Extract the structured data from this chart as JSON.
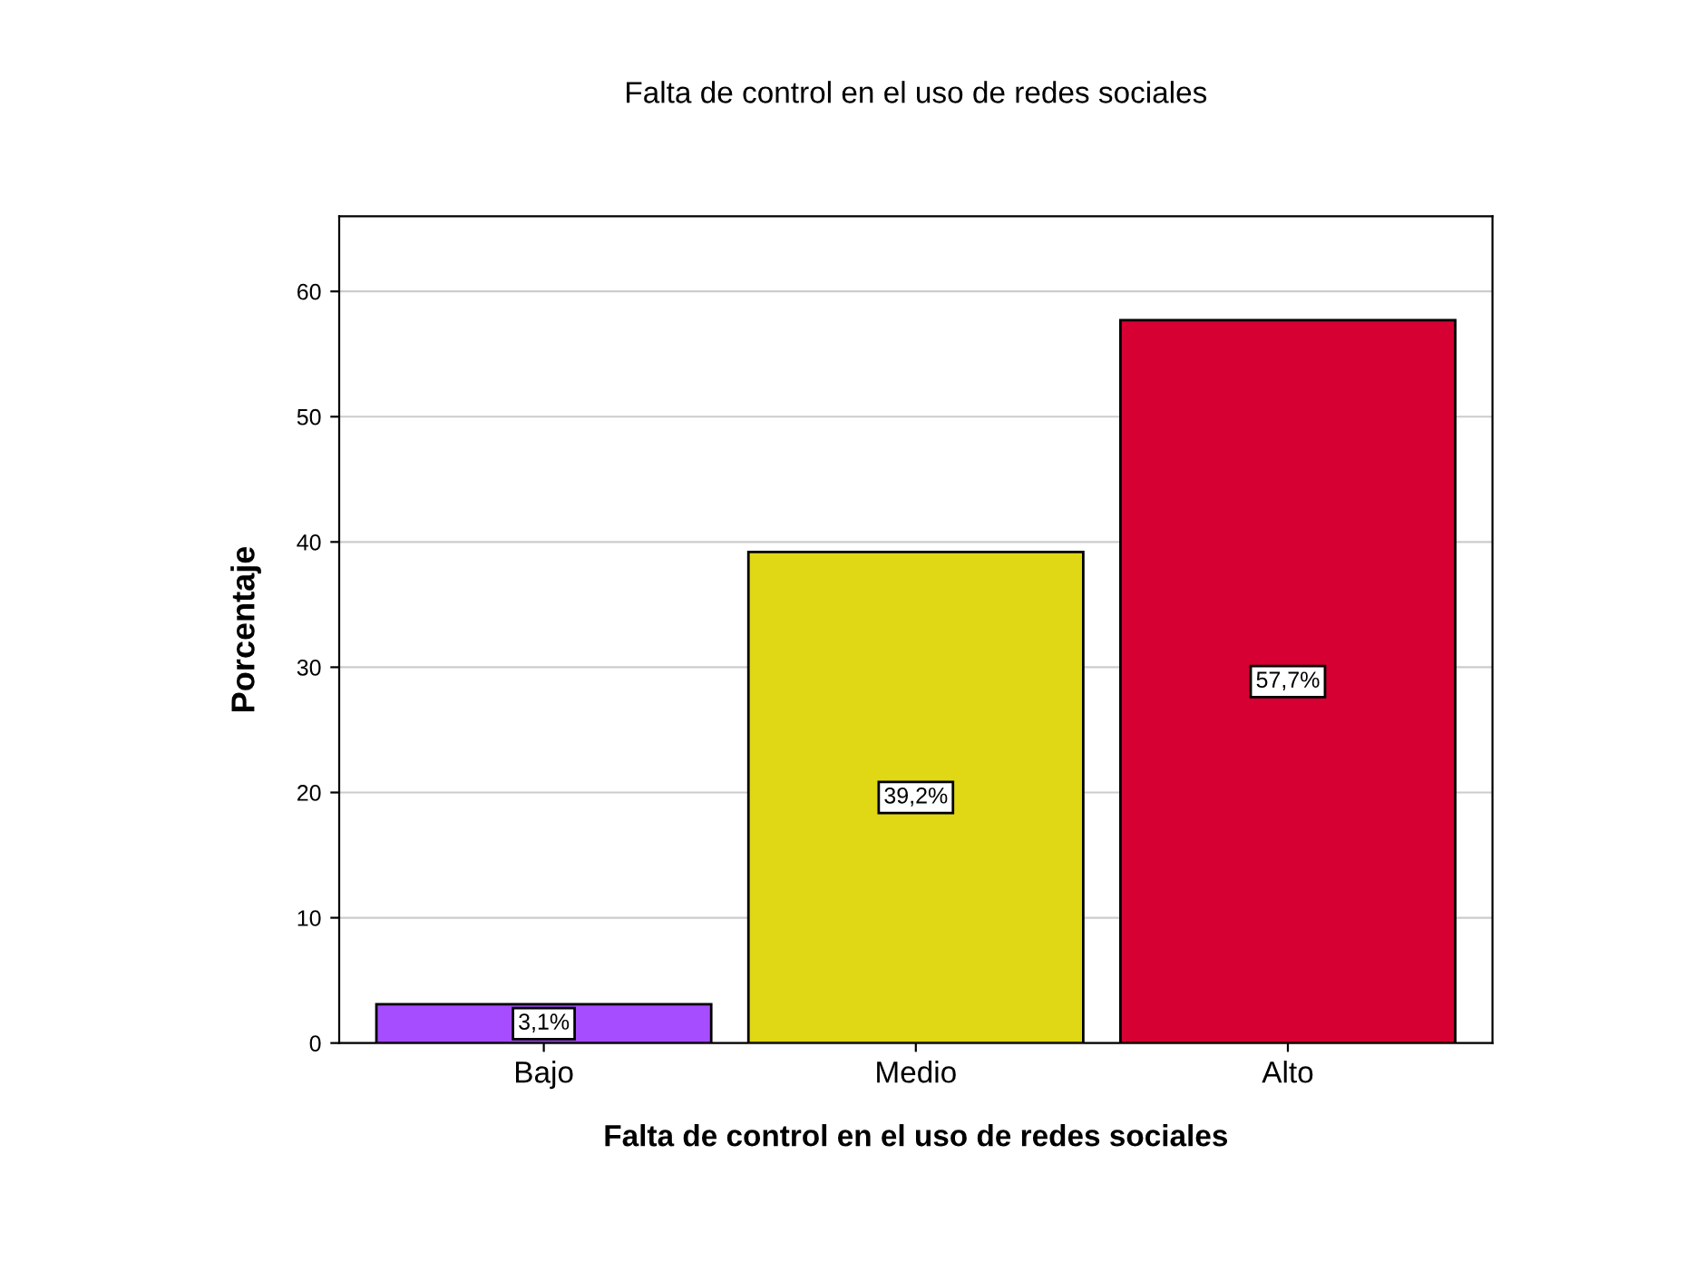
{
  "chart_data": {
    "type": "bar",
    "title": "Falta de control en el uso de redes sociales",
    "xlabel": "Falta de control en el uso de redes sociales",
    "ylabel": "Porcentaje",
    "categories": [
      "Bajo",
      "Medio",
      "Alto"
    ],
    "values": [
      3.1,
      39.2,
      57.7
    ],
    "colors": [
      "#a64dff",
      "#e0d814",
      "#d60032"
    ],
    "value_labels": [
      "3,1%",
      "39,2%",
      "57,7%"
    ],
    "ylim": [
      0,
      66
    ],
    "yticks": [
      0,
      10,
      20,
      30,
      40,
      50,
      60
    ],
    "grid": "y",
    "legend": false
  }
}
